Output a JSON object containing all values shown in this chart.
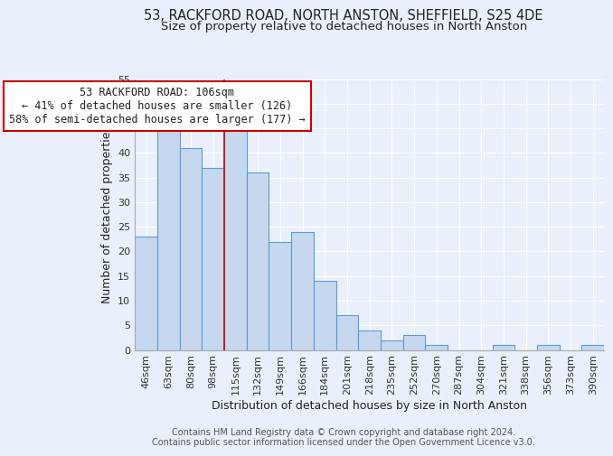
{
  "title_line1": "53, RACKFORD ROAD, NORTH ANSTON, SHEFFIELD, S25 4DE",
  "title_line2": "Size of property relative to detached houses in North Anston",
  "xlabel": "Distribution of detached houses by size in North Anston",
  "ylabel": "Number of detached properties",
  "annotation_line1": "53 RACKFORD ROAD: 106sqm",
  "annotation_line2": "← 41% of detached houses are smaller (126)",
  "annotation_line3": "58% of semi-detached houses are larger (177) →",
  "footer_line1": "Contains HM Land Registry data © Crown copyright and database right 2024.",
  "footer_line2": "Contains public sector information licensed under the Open Government Licence v3.0.",
  "bar_categories": [
    "46sqm",
    "63sqm",
    "80sqm",
    "98sqm",
    "115sqm",
    "132sqm",
    "149sqm",
    "166sqm",
    "184sqm",
    "201sqm",
    "218sqm",
    "235sqm",
    "252sqm",
    "270sqm",
    "287sqm",
    "304sqm",
    "321sqm",
    "338sqm",
    "356sqm",
    "373sqm",
    "390sqm"
  ],
  "bar_values": [
    23,
    45,
    41,
    37,
    45,
    36,
    22,
    24,
    14,
    7,
    4,
    2,
    3,
    1,
    0,
    0,
    1,
    0,
    1,
    0,
    1
  ],
  "bar_color": "#c5d8f0",
  "bar_edge_color": "#5b9bd5",
  "red_line_x": 3.5,
  "ylim": [
    0,
    55
  ],
  "yticks": [
    0,
    5,
    10,
    15,
    20,
    25,
    30,
    35,
    40,
    45,
    50,
    55
  ],
  "bg_color": "#eaf0fb",
  "plot_bg_color": "#eaf0fb",
  "grid_color": "#ffffff",
  "annotation_box_color": "#ffffff",
  "annotation_box_edge": "#cc0000",
  "red_line_color": "#cc0000",
  "title_fontsize": 10.5,
  "subtitle_fontsize": 9.5,
  "axis_label_fontsize": 9,
  "tick_fontsize": 8,
  "annotation_fontsize": 8.5,
  "footer_fontsize": 7
}
